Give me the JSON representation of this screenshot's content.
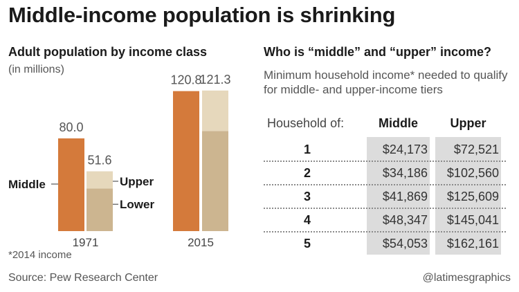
{
  "title": "Middle-income population is shrinking",
  "left": {
    "subtitle": "Adult population by income class",
    "units": "(in millions)"
  },
  "right": {
    "subtitle": "Who is “middle” and “upper” income?",
    "description": "Minimum household income* needed to qualify for middle- and upper-income tiers"
  },
  "colors": {
    "middle": "#d47a3b",
    "upper": "#e6d8bc",
    "lower": "#ccb590",
    "table_shade": "#dcdcdc"
  },
  "chart_data": [
    {
      "type": "bar",
      "categories": [
        "1971",
        "2015"
      ],
      "ylim": [
        0,
        130
      ],
      "series": [
        {
          "name": "Middle",
          "values": [
            80.0,
            120.8
          ],
          "labels": [
            "80.0",
            "120.8"
          ]
        },
        {
          "name": "Upper",
          "values": [
            14.8,
            34.9
          ]
        },
        {
          "name": "Lower",
          "values": [
            36.8,
            86.4
          ]
        }
      ],
      "stack_totals": [
        51.6,
        121.3
      ],
      "stack_total_labels": [
        "51.6",
        "121.3"
      ],
      "legend": {
        "middle": "Middle",
        "upper": "Upper",
        "lower": "Lower"
      }
    },
    {
      "type": "table",
      "columns": [
        "Household of:",
        "Middle",
        "Upper"
      ],
      "rows": [
        {
          "size": "1",
          "middle": "$24,173",
          "upper": "$72,521"
        },
        {
          "size": "2",
          "middle": "$34,186",
          "upper": "$102,560"
        },
        {
          "size": "3",
          "middle": "$41,869",
          "upper": "$125,609"
        },
        {
          "size": "4",
          "middle": "$48,347",
          "upper": "$145,041"
        },
        {
          "size": "5",
          "middle": "$54,053",
          "upper": "$162,161"
        }
      ]
    }
  ],
  "footnote": "*2014 income",
  "source": "Source: Pew Research Center",
  "credit": "@latimesgraphics"
}
